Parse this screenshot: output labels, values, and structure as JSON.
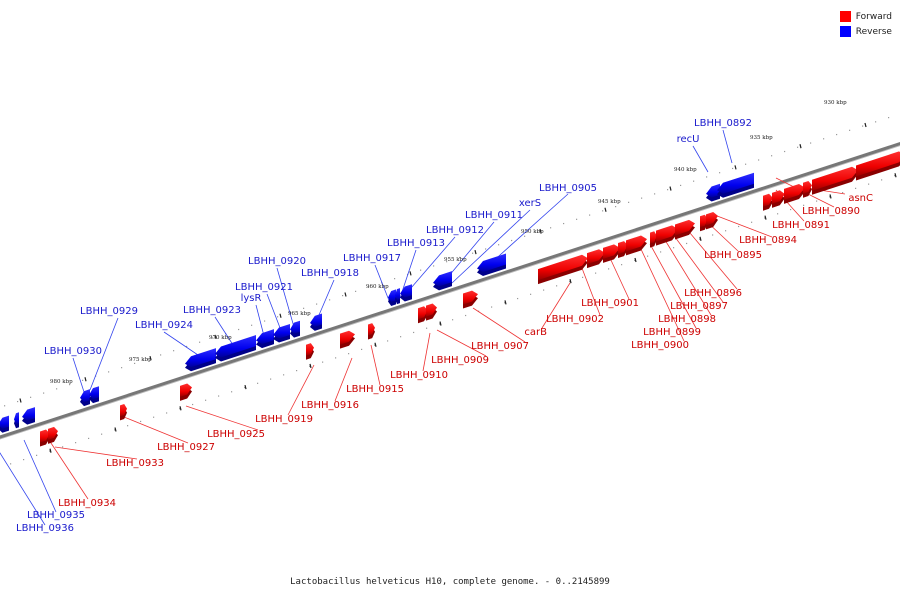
{
  "legend": {
    "forward": {
      "label": "Forward",
      "color": "#ff0000"
    },
    "reverse": {
      "label": "Reverse",
      "color": "#0000ff"
    }
  },
  "caption": "Lactobacillus helveticus H10, complete genome. - 0..2145899",
  "colors": {
    "backbone": "#777777",
    "forward": "#ff0000",
    "reverse": "#0000ff",
    "label_forward": "#cc0000",
    "label_reverse": "#1a1acc"
  },
  "kbp_ticks": [
    "930 kbp",
    "935 kbp",
    "940 kbp",
    "945 kbp",
    "950 kbp",
    "955 kbp",
    "960 kbp",
    "965 kbp",
    "970 kbp",
    "975 kbp",
    "980 kbp"
  ],
  "genes_reverse": [
    "LBHH_0892",
    "recU",
    "LBHH_0905",
    "xerS",
    "LBHH_0911",
    "LBHH_0912",
    "LBHH_0913",
    "LBHH_0917",
    "LBHH_0918",
    "LBHH_0920",
    "LBHH_0921",
    "lysR",
    "LBHH_0923",
    "LBHH_0924",
    "LBHH_0929",
    "LBHH_0930",
    "LBHH_0935",
    "LBHH_0936"
  ],
  "genes_forward": [
    "asnC",
    "LBHH_0890",
    "LBHH_0891",
    "LBHH_0894",
    "LBHH_0895",
    "LBHH_0896",
    "LBHH_0897",
    "LBHH_0898",
    "LBHH_0899",
    "LBHH_0900",
    "LBHH_0901",
    "LBHH_0902",
    "carB",
    "LBHH_0907",
    "LBHH_0909",
    "LBHH_0910",
    "LBHH_0915",
    "LBHH_0916",
    "LBHH_0919",
    "LBHH_0925",
    "LBHH_0927",
    "LBHH_0933",
    "LBHH_0934"
  ]
}
